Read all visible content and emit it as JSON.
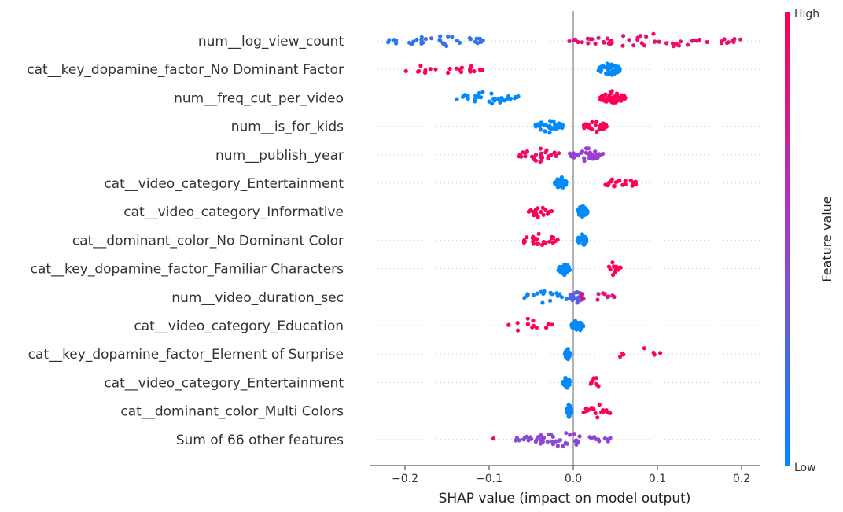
{
  "chart_data": {
    "type": "scatter",
    "subtype": "shap-beeswarm",
    "title": "",
    "xlabel": "SHAP value (impact on model output)",
    "xlim": [
      -0.24,
      0.22
    ],
    "xticks": [
      "−0.2",
      "−0.1",
      "0.0",
      "0.1",
      "0.2"
    ],
    "xtick_values": [
      -0.2,
      -0.1,
      0.0,
      0.1,
      0.2
    ],
    "colorbar": {
      "label": "Feature value",
      "high": "High",
      "low": "Low",
      "colors": {
        "low": "#008bfb",
        "mid": "#9b3fd3",
        "high": "#ff0052"
      }
    },
    "features": [
      {
        "name": "num__log_view_count",
        "groups": [
          {
            "min": -0.22,
            "max": -0.1,
            "value": 0.15,
            "n": 35
          },
          {
            "min": -0.005,
            "max": 0.2,
            "value": 0.88,
            "n": 55
          }
        ]
      },
      {
        "name": "cat__key_dopamine_factor_No Dominant Factor",
        "groups": [
          {
            "min": 0.03,
            "max": 0.056,
            "value": 0.0,
            "n": 55
          },
          {
            "min": -0.2,
            "max": -0.105,
            "value": 1.0,
            "n": 22
          }
        ]
      },
      {
        "name": "num__freq_cut_per_video",
        "groups": [
          {
            "min": -0.14,
            "max": -0.065,
            "value": 0.0,
            "n": 35
          },
          {
            "min": 0.032,
            "max": 0.062,
            "value": 1.0,
            "n": 60
          }
        ]
      },
      {
        "name": "num__is_for_kids",
        "groups": [
          {
            "min": -0.045,
            "max": -0.012,
            "value": 0.0,
            "n": 45
          },
          {
            "min": 0.012,
            "max": 0.04,
            "value": 1.0,
            "n": 35
          }
        ]
      },
      {
        "name": "num__publish_year",
        "groups": [
          {
            "min": -0.065,
            "max": -0.015,
            "value": 0.92,
            "n": 30
          },
          {
            "min": -0.005,
            "max": 0.036,
            "value": 0.5,
            "n": 35
          }
        ]
      },
      {
        "name": "cat__video_category_Entertainment ",
        "groups": [
          {
            "min": -0.022,
            "max": -0.008,
            "value": 0.0,
            "n": 40
          },
          {
            "min": 0.038,
            "max": 0.075,
            "value": 1.0,
            "n": 22
          }
        ]
      },
      {
        "name": "cat__video_category_Informative",
        "groups": [
          {
            "min": 0.005,
            "max": 0.017,
            "value": 0.0,
            "n": 45
          },
          {
            "min": -0.053,
            "max": -0.025,
            "value": 1.0,
            "n": 20
          }
        ]
      },
      {
        "name": "cat__dominant_color_No Dominant Color",
        "groups": [
          {
            "min": 0.005,
            "max": 0.016,
            "value": 0.0,
            "n": 45
          },
          {
            "min": -0.063,
            "max": -0.017,
            "value": 1.0,
            "n": 25
          }
        ]
      },
      {
        "name": "cat__key_dopamine_factor_Familiar Characters",
        "groups": [
          {
            "min": -0.018,
            "max": -0.004,
            "value": 0.0,
            "n": 40
          },
          {
            "min": 0.036,
            "max": 0.058,
            "value": 1.0,
            "n": 12
          }
        ]
      },
      {
        "name": "num__video_duration_sec",
        "groups": [
          {
            "min": -0.063,
            "max": -0.005,
            "value": 0.05,
            "n": 20
          },
          {
            "min": -0.005,
            "max": 0.012,
            "value": 0.3,
            "n": 25
          },
          {
            "min": 0.002,
            "max": 0.05,
            "value": 0.85,
            "n": 12
          }
        ]
      },
      {
        "name": "cat__video_category_Education",
        "groups": [
          {
            "min": -0.002,
            "max": 0.012,
            "value": 0.0,
            "n": 40
          },
          {
            "min": -0.083,
            "max": -0.025,
            "value": 1.0,
            "n": 12
          }
        ]
      },
      {
        "name": "cat__key_dopamine_factor_Element of Surprise",
        "groups": [
          {
            "min": -0.01,
            "max": -0.004,
            "value": 0.0,
            "n": 40
          },
          {
            "min": 0.05,
            "max": 0.11,
            "value": 1.0,
            "n": 7
          }
        ]
      },
      {
        "name": "cat__video_category_Entertainment",
        "groups": [
          {
            "min": -0.012,
            "max": -0.004,
            "value": 0.0,
            "n": 40
          },
          {
            "min": 0.02,
            "max": 0.033,
            "value": 1.0,
            "n": 10
          }
        ]
      },
      {
        "name": "cat__dominant_color_Multi Colors",
        "groups": [
          {
            "min": -0.008,
            "max": -0.002,
            "value": 0.0,
            "n": 40
          },
          {
            "min": 0.012,
            "max": 0.046,
            "value": 1.0,
            "n": 18
          }
        ]
      },
      {
        "name": "Sum of 66 other features",
        "groups": [
          {
            "min": -0.07,
            "max": 0.045,
            "value": 0.45,
            "n": 55
          },
          {
            "min": -0.095,
            "max": -0.09,
            "value": 1.0,
            "n": 1
          }
        ]
      }
    ]
  }
}
